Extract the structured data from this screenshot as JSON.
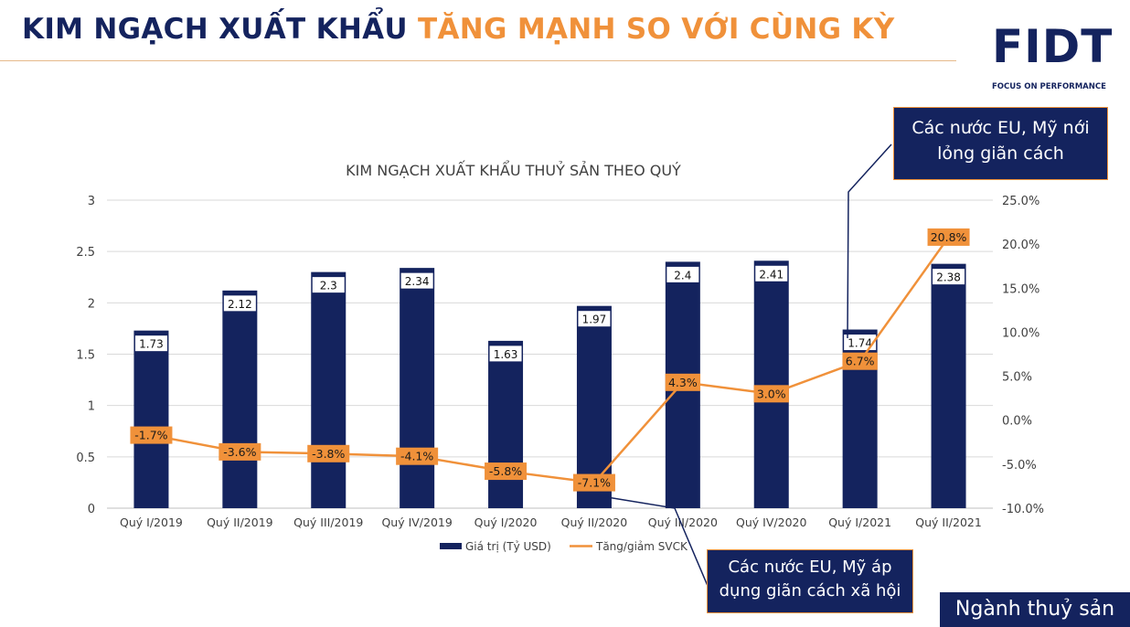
{
  "header": {
    "title_part1": "KIM NGẠCH XUẤT KHẨU",
    "title_part2": "TĂNG MẠNH SO VỚI CÙNG KỲ"
  },
  "logo": {
    "text": "FIDT",
    "tagline": "FOCUS ON PERFORMANCE",
    "color": "#14235e"
  },
  "callouts": {
    "top": "Các nước EU, Mỹ nới lỏng giãn cách",
    "bottom": "Các nước EU, Mỹ áp dụng giãn cách xã hội"
  },
  "footer": {
    "sector_label": "Ngành thuỷ sản"
  },
  "colors": {
    "navy": "#14235e",
    "orange": "#f0913a",
    "axis_text": "#404040",
    "grid": "#d9d9d9"
  },
  "chart_data": {
    "type": "bar",
    "title": "KIM NGẠCH XUẤT KHẨU THUỶ SẢN THEO QUÝ",
    "categories": [
      "Quý I/2019",
      "Quý II/2019",
      "Quý III/2019",
      "Quý IV/2019",
      "Quý I/2020",
      "Quý II/2020",
      "Quý III/2020",
      "Quý IV/2020",
      "Quý I/2021",
      "Quý II/2021"
    ],
    "series": [
      {
        "name": "Giá trị (Tỷ USD)",
        "type": "bar",
        "axis": "left",
        "values": [
          1.73,
          2.12,
          2.3,
          2.34,
          1.63,
          1.97,
          2.4,
          2.41,
          1.74,
          2.38
        ],
        "labels": [
          "1.73",
          "2.12",
          "2.3",
          "2.34",
          "1.63",
          "1.97",
          "2.4",
          "2.41",
          "1.74",
          "2.38"
        ]
      },
      {
        "name": "Tăng/giảm SVCK",
        "type": "line",
        "axis": "right",
        "values": [
          -1.7,
          -3.6,
          -3.8,
          -4.1,
          -5.8,
          -7.1,
          4.3,
          3.0,
          6.7,
          20.8
        ],
        "labels": [
          "-1.7%",
          "-3.6%",
          "-3.8%",
          "-4.1%",
          "-5.8%",
          "-7.1%",
          "4.3%",
          "3.0%",
          "6.7%",
          "20.8%"
        ]
      }
    ],
    "ylim": [
      0,
      3
    ],
    "y_ticks": [
      0,
      0.5,
      1,
      1.5,
      2,
      2.5,
      3
    ],
    "y_tick_labels": [
      "0",
      "0.5",
      "1",
      "1.5",
      "2",
      "2.5",
      "3"
    ],
    "y2lim": [
      -10,
      25
    ],
    "y2_ticks": [
      -10,
      -5,
      0,
      5,
      10,
      15,
      20,
      25
    ],
    "y2_tick_labels": [
      "-10.0%",
      "-5.0%",
      "0.0%",
      "5.0%",
      "10.0%",
      "15.0%",
      "20.0%",
      "25.0%"
    ],
    "grid": true,
    "legend_position": "bottom"
  }
}
